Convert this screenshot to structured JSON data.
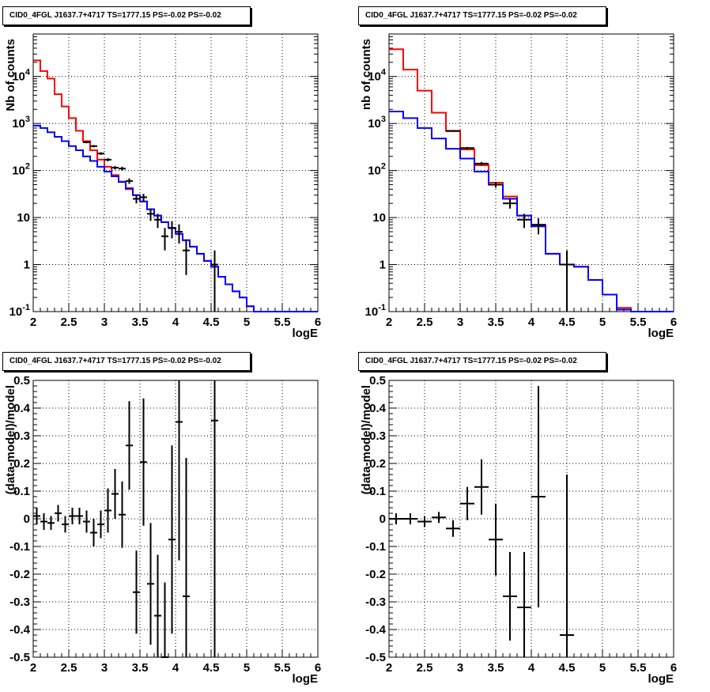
{
  "panels": [
    {
      "title": "CID0_4FGL J1637.7+4717 TS=1777.15 PS=-0.02 PS=-0.02",
      "ylabel": "Nb of counts",
      "xlabel": "logE"
    },
    {
      "title": "CID0_4FGL J1637.7+4717 TS=1777.15 PS=-0.02 PS=-0.02",
      "ylabel": "nb of counts",
      "xlabel": "logE"
    },
    {
      "title": "CID0_4FGL J1637.7+4717 TS=1777.15 PS=-0.02 PS=-0.02",
      "ylabel": "(data-model)/model",
      "xlabel": "logE"
    },
    {
      "title": "CID0_4FGL J1637.7+4717 TS=1777.15 PS=-0.02 PS=-0.02",
      "ylabel": "(data-model)/model",
      "xlabel": "logE"
    }
  ],
  "colors": {
    "model_total": "#ff0000",
    "model_bkg": "#0000ff",
    "data": "#000000",
    "grid": "#000000"
  },
  "chart_data": [
    {
      "type": "line",
      "title": "CID0_4FGL J1637.7+4717 TS=1777.15 PS=-0.02 PS=-0.02",
      "xlabel": "logE",
      "ylabel": "Nb of counts",
      "xlim": [
        2,
        6
      ],
      "ylim": [
        0.1,
        80000
      ],
      "yscale": "log",
      "grid": true,
      "xticks": [
        "2",
        "2.5",
        "3",
        "3.5",
        "4",
        "4.5",
        "5",
        "5.5",
        "6"
      ],
      "yticks": [
        "10^-1",
        "1",
        "10",
        "10^2",
        "10^3",
        "10^4"
      ],
      "x_edges": [
        2,
        2.1,
        2.2,
        2.3,
        2.4,
        2.5,
        2.6,
        2.7,
        2.8,
        2.9,
        3,
        3.1,
        3.2,
        3.3,
        3.4,
        3.5,
        3.6,
        3.7,
        3.8,
        3.9,
        4,
        4.1,
        4.2,
        4.3,
        4.4,
        4.5,
        4.6,
        4.7,
        4.8,
        4.9,
        5,
        5.1,
        5.2,
        5.3,
        5.4,
        5.5,
        5.6,
        5.7,
        5.8,
        5.9,
        6
      ],
      "series": [
        {
          "name": "total model",
          "color": "#ff0000",
          "values": [
            22000,
            13000,
            9000,
            4200,
            2300,
            1300,
            700,
            420,
            270,
            170,
            120,
            80,
            58,
            40,
            30,
            22,
            15,
            11,
            8,
            6,
            4.5,
            3.3,
            2.4,
            1.7,
            1.2,
            0.9,
            0.55,
            0.38,
            0.27,
            0.2,
            0.13,
            0.1,
            0.1,
            0.1,
            0.1,
            0.1,
            0.1,
            0.1,
            0.1,
            0.1
          ]
        },
        {
          "name": "background model",
          "color": "#0000ff",
          "values": [
            900,
            800,
            650,
            520,
            420,
            330,
            270,
            200,
            160,
            120,
            95,
            75,
            57,
            42,
            30,
            22,
            15,
            11,
            8,
            6,
            4.5,
            3.3,
            2.4,
            1.7,
            1.2,
            0.9,
            0.55,
            0.38,
            0.27,
            0.2,
            0.13,
            0.1,
            0.1,
            0.1,
            0.1,
            0.1,
            0.1,
            0.1,
            0.1,
            0.1
          ]
        },
        {
          "name": "data",
          "color": "#000000",
          "type": "errorbar",
          "x": [
            2.75,
            2.85,
            2.95,
            3.05,
            3.15,
            3.25,
            3.35,
            3.45,
            3.55,
            3.65,
            3.75,
            3.85,
            3.95,
            4.05,
            4.15,
            4.55
          ],
          "y": [
            400,
            330,
            230,
            170,
            115,
            110,
            60,
            25,
            27,
            12,
            9,
            4,
            6,
            5,
            2,
            1
          ],
          "yerr_lo": [
            20,
            18,
            15,
            13,
            10,
            10,
            8,
            5,
            5,
            3.5,
            3,
            2,
            2.4,
            2.2,
            1.4,
            0.9
          ],
          "yerr_hi": [
            20,
            18,
            15,
            13,
            10,
            10,
            8,
            5,
            5,
            3.5,
            3,
            2,
            2.4,
            2.2,
            1.4,
            1
          ]
        }
      ]
    },
    {
      "type": "line",
      "title": "CID0_4FGL J1637.7+4717 TS=1777.15 PS=-0.02 PS=-0.02",
      "xlabel": "logE",
      "ylabel": "nb of counts",
      "xlim": [
        2,
        6
      ],
      "ylim": [
        0.1,
        80000
      ],
      "yscale": "log",
      "grid": true,
      "xticks": [
        "2",
        "2.5",
        "3",
        "3.5",
        "4",
        "4.5",
        "5",
        "5.5",
        "6"
      ],
      "yticks": [
        "10^-1",
        "1",
        "10",
        "10^2",
        "10^3",
        "10^4"
      ],
      "x_edges": [
        2,
        2.2,
        2.4,
        2.6,
        2.8,
        3,
        3.2,
        3.4,
        3.6,
        3.8,
        4,
        4.2,
        4.4,
        4.6,
        4.8,
        5,
        5.2,
        5.4,
        5.6,
        5.8,
        6
      ],
      "series": [
        {
          "name": "total model",
          "color": "#ff0000",
          "values": [
            38000,
            14000,
            5000,
            1700,
            700,
            280,
            130,
            55,
            28,
            11,
            7,
            1.7,
            1,
            0.9,
            0.47,
            0.23,
            0.12,
            0.1,
            0.1,
            0.1
          ]
        },
        {
          "name": "background model",
          "color": "#0000ff",
          "values": [
            1800,
            1300,
            800,
            480,
            290,
            180,
            95,
            50,
            25,
            11,
            6.5,
            1.7,
            1,
            0.9,
            0.47,
            0.23,
            0.11,
            0.1,
            0.1,
            0.1
          ]
        },
        {
          "name": "data",
          "color": "#000000",
          "type": "errorbar",
          "x": [
            2.9,
            3.1,
            3.3,
            3.5,
            3.7,
            3.9,
            4.1,
            4.5
          ],
          "y": [
            690,
            300,
            140,
            50,
            20,
            9,
            7,
            1
          ],
          "yerr_lo": [
            26,
            17,
            12,
            7,
            4.5,
            3,
            2.6,
            0.9
          ],
          "yerr_hi": [
            26,
            17,
            12,
            7,
            4.5,
            3,
            2.6,
            1
          ]
        }
      ]
    },
    {
      "type": "scatter",
      "title": "CID0_4FGL J1637.7+4717 TS=1777.15 PS=-0.02 PS=-0.02",
      "xlabel": "logE",
      "ylabel": "(data-model)/model",
      "xlim": [
        2,
        6
      ],
      "ylim": [
        -0.5,
        0.5
      ],
      "grid": true,
      "xticks": [
        "2",
        "2.5",
        "3",
        "3.5",
        "4",
        "4.5",
        "5",
        "5.5",
        "6"
      ],
      "yticks": [
        "-0.5",
        "-0.4",
        "-0.3",
        "-0.2",
        "-0.1",
        "0",
        "0.1",
        "0.2",
        "0.3",
        "0.4",
        "0.5"
      ],
      "x": [
        2.05,
        2.15,
        2.25,
        2.35,
        2.45,
        2.55,
        2.65,
        2.75,
        2.85,
        2.95,
        3.05,
        3.15,
        3.25,
        3.35,
        3.45,
        3.55,
        3.65,
        3.75,
        3.85,
        3.95,
        4.05,
        4.15,
        4.55
      ],
      "y": [
        0.01,
        -0.01,
        -0.015,
        0.02,
        -0.02,
        0.01,
        0.01,
        -0.01,
        -0.05,
        -0.02,
        0.03,
        0.09,
        0.015,
        0.265,
        -0.265,
        0.205,
        -0.235,
        -0.35,
        -0.5,
        -0.075,
        0.35,
        -0.28,
        0.355
      ],
      "yerr": [
        0.03,
        0.03,
        0.025,
        0.03,
        0.03,
        0.03,
        0.03,
        0.04,
        0.05,
        0.05,
        0.08,
        0.09,
        0.12,
        0.16,
        0.15,
        0.23,
        0.22,
        0.22,
        0.27,
        0.34,
        0.5,
        0.5,
        0.9
      ],
      "xerr": 0.05
    },
    {
      "type": "scatter",
      "title": "CID0_4FGL J1637.7+4717 TS=1777.15 PS=-0.02 PS=-0.02",
      "xlabel": "logE",
      "ylabel": "(data-model)/model",
      "xlim": [
        2,
        6
      ],
      "ylim": [
        -0.5,
        0.5
      ],
      "grid": true,
      "xticks": [
        "2",
        "2.5",
        "3",
        "3.5",
        "4",
        "4.5",
        "5",
        "5.5",
        "6"
      ],
      "yticks": [
        "-0.5",
        "-0.4",
        "-0.3",
        "-0.2",
        "-0.1",
        "0",
        "0.1",
        "0.2",
        "0.3",
        "0.4",
        "0.5"
      ],
      "x": [
        2.1,
        2.3,
        2.5,
        2.7,
        2.9,
        3.1,
        3.3,
        3.5,
        3.7,
        3.9,
        4.1,
        4.5
      ],
      "y": [
        0.0,
        0.0,
        -0.01,
        0.005,
        -0.035,
        0.055,
        0.115,
        -0.075,
        -0.28,
        -0.32,
        0.08,
        -0.42
      ],
      "yerr": [
        0.02,
        0.02,
        0.02,
        0.02,
        0.03,
        0.06,
        0.1,
        0.13,
        0.16,
        0.2,
        0.4,
        0.58
      ],
      "xerr": 0.1
    }
  ]
}
